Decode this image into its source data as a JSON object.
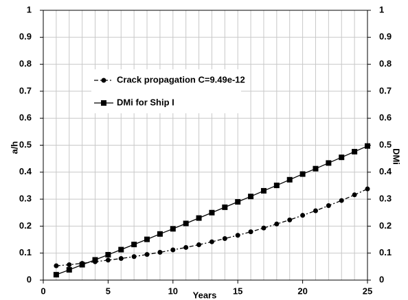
{
  "chart_data": {
    "type": "line",
    "xlabel": "Years",
    "ylabel": "a/h",
    "y2label": "DMi",
    "x": [
      1,
      2,
      3,
      4,
      5,
      6,
      7,
      8,
      9,
      10,
      11,
      12,
      13,
      14,
      15,
      16,
      17,
      18,
      19,
      20,
      21,
      22,
      23,
      24,
      25
    ],
    "series": [
      {
        "name": "Crack propagation  C=9.49e-12",
        "color": "#000000",
        "dash": "dashdot",
        "marker": "circle",
        "values": [
          0.053,
          0.057,
          0.062,
          0.068,
          0.074,
          0.08,
          0.087,
          0.095,
          0.103,
          0.112,
          0.121,
          0.131,
          0.142,
          0.154,
          0.166,
          0.179,
          0.193,
          0.208,
          0.223,
          0.24,
          0.257,
          0.276,
          0.295,
          0.316,
          0.338
        ]
      },
      {
        "name": "DMi  for Ship I",
        "color": "#000000",
        "dash": "solid",
        "marker": "square",
        "values": [
          0.02,
          0.038,
          0.057,
          0.075,
          0.094,
          0.113,
          0.132,
          0.151,
          0.171,
          0.19,
          0.21,
          0.23,
          0.25,
          0.27,
          0.29,
          0.31,
          0.331,
          0.351,
          0.372,
          0.393,
          0.413,
          0.434,
          0.455,
          0.476,
          0.497
        ]
      }
    ],
    "xlim": [
      0,
      25
    ],
    "xticks": [
      0,
      5,
      10,
      15,
      20,
      25
    ],
    "ylim": [
      0,
      1
    ],
    "yticks": [
      0,
      0.1,
      0.2,
      0.3,
      0.4,
      0.5,
      0.6,
      0.7,
      0.8,
      0.9,
      1
    ],
    "y2lim": [
      0,
      1
    ],
    "y2ticks": [
      0,
      0.1,
      0.2,
      0.3,
      0.4,
      0.5,
      0.6,
      0.7,
      0.8,
      0.9,
      1
    ],
    "grid": true
  }
}
